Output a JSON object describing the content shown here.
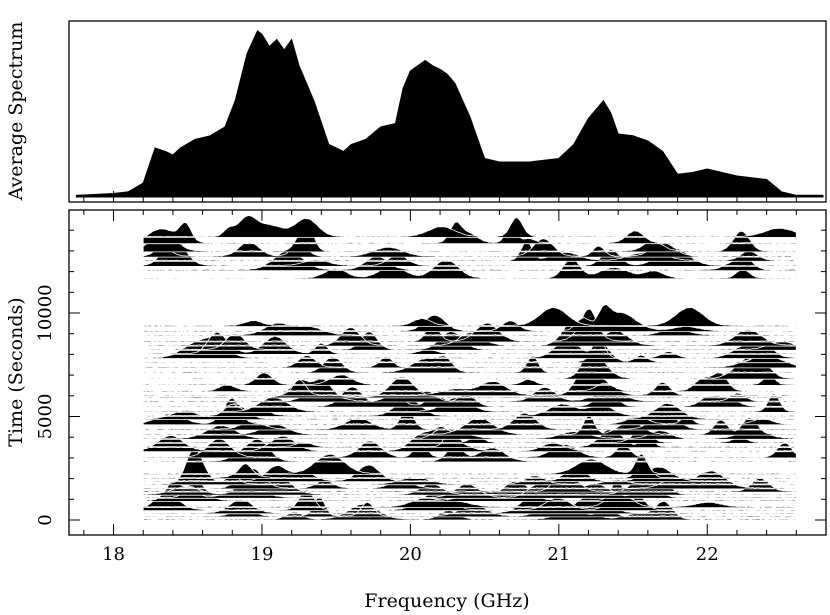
{
  "chart_data": [
    {
      "type": "area",
      "ylabel": "Average Spectrum",
      "xlim": [
        17.7,
        22.8
      ],
      "x": [
        17.75,
        18.0,
        18.1,
        18.2,
        18.28,
        18.35,
        18.4,
        18.45,
        18.55,
        18.65,
        18.75,
        18.82,
        18.9,
        18.97,
        19.0,
        19.05,
        19.1,
        19.15,
        19.2,
        19.25,
        19.35,
        19.45,
        19.55,
        19.6,
        19.7,
        19.8,
        19.9,
        19.95,
        20.0,
        20.1,
        20.15,
        20.2,
        20.25,
        20.3,
        20.4,
        20.5,
        20.6,
        20.8,
        21.0,
        21.1,
        21.2,
        21.3,
        21.35,
        21.4,
        21.5,
        21.6,
        21.7,
        21.8,
        21.9,
        22.0,
        22.1,
        22.2,
        22.3,
        22.4,
        22.5,
        22.6,
        22.78
      ],
      "y": [
        0.01,
        0.02,
        0.03,
        0.08,
        0.28,
        0.26,
        0.24,
        0.28,
        0.33,
        0.35,
        0.4,
        0.55,
        0.82,
        0.95,
        0.93,
        0.86,
        0.9,
        0.84,
        0.9,
        0.75,
        0.55,
        0.3,
        0.26,
        0.3,
        0.33,
        0.4,
        0.42,
        0.62,
        0.72,
        0.78,
        0.75,
        0.73,
        0.7,
        0.65,
        0.46,
        0.22,
        0.2,
        0.2,
        0.22,
        0.3,
        0.45,
        0.55,
        0.48,
        0.36,
        0.35,
        0.32,
        0.26,
        0.13,
        0.14,
        0.16,
        0.14,
        0.12,
        0.11,
        0.1,
        0.03,
        0.01,
        0.01
      ]
    },
    {
      "type": "line",
      "xlabel": "Frequency (GHz)",
      "ylabel": "Time (Seconds)",
      "xlim": [
        17.7,
        22.8
      ],
      "ylim": [
        -400,
        14200
      ],
      "xticks": [
        18,
        19,
        20,
        21,
        22
      ],
      "yticks": [
        0,
        5000,
        10000
      ],
      "freq_range": [
        18.2,
        22.6
      ],
      "scan_times": [
        0,
        150,
        300,
        450,
        600,
        900,
        1050,
        1200,
        1350,
        1500,
        1700,
        1850,
        2000,
        2200,
        2800,
        3000,
        3300,
        3500,
        3700,
        3900,
        4100,
        4350,
        4600,
        4850,
        5000,
        5200,
        5450,
        5700,
        5900,
        6000,
        6200,
        6500,
        6800,
        7100,
        7350,
        7600,
        7800,
        8000,
        8200,
        8400,
        8600,
        8900,
        9100,
        9350,
        11650,
        12050,
        12250,
        12500,
        12700,
        12950,
        13350,
        13650
      ],
      "peak_freqs": [
        18.45,
        18.7,
        18.85,
        19.0,
        19.2,
        19.4,
        19.65,
        19.85,
        20.0,
        20.2,
        20.35,
        20.55,
        20.75,
        20.95,
        21.2,
        21.3,
        21.45,
        21.65,
        21.9,
        22.15,
        22.4
      ]
    }
  ]
}
